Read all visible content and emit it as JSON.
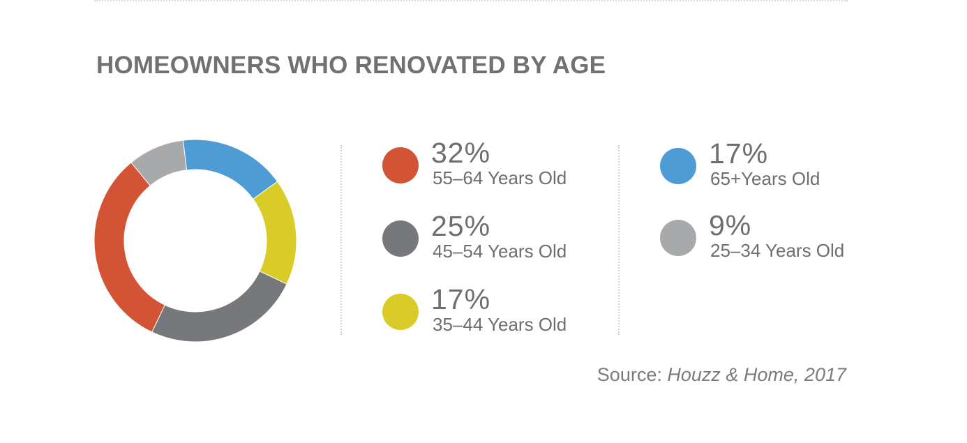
{
  "chart_data": {
    "type": "pie",
    "variant": "donut",
    "title": "HOMEOWNERS WHO RENOVATED BY AGE",
    "categories": [
      "55–64 Years Old",
      "45–54 Years Old",
      "35–44 Years Old",
      "65+Years Old",
      "25–34 Years Old"
    ],
    "values": [
      32,
      25,
      17,
      17,
      9
    ],
    "value_labels": [
      "32%",
      "25%",
      "17%",
      "17%",
      "9%"
    ],
    "colors": [
      "#d35434",
      "#77787b",
      "#d9cc28",
      "#4e9cd6",
      "#a7a9ab"
    ],
    "legend_placement": "right"
  },
  "source": {
    "prefix": "Source: ",
    "text": "Houzz & Home, 2017"
  }
}
